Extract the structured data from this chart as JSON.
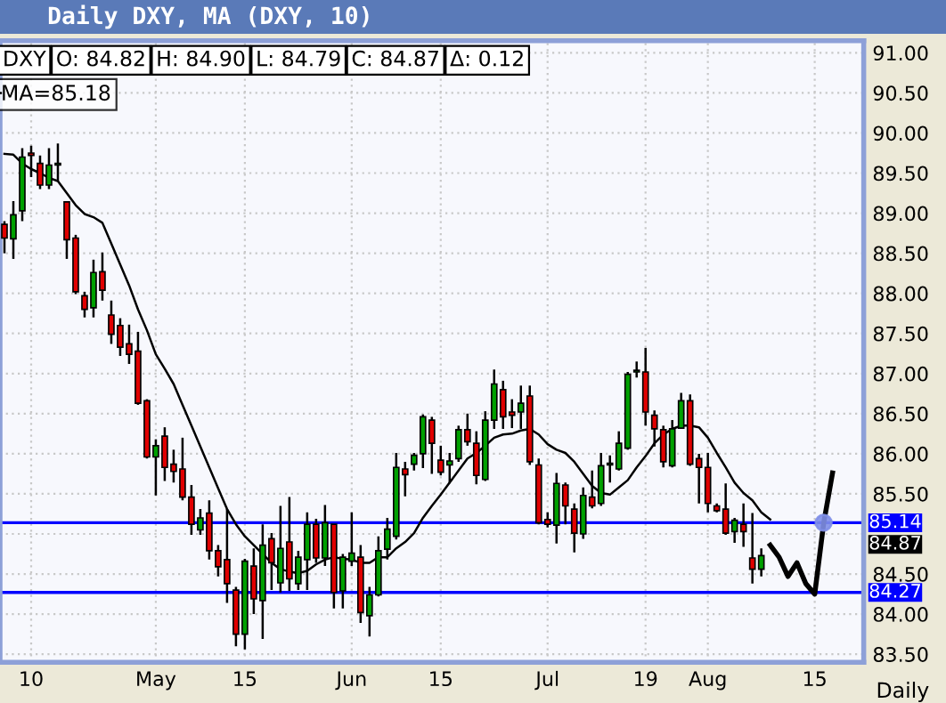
{
  "chart_data": {
    "type": "candlestick",
    "title": "Daily DXY, MA (DXY, 10)",
    "xlabel": "Daily",
    "categories": [
      null,
      null,
      null,
      "10",
      null,
      null,
      null,
      null,
      null,
      null,
      null,
      null,
      null,
      null,
      null,
      null,
      null,
      "May",
      null,
      null,
      null,
      null,
      null,
      null,
      null,
      null,
      null,
      "15",
      null,
      null,
      null,
      null,
      null,
      null,
      null,
      null,
      null,
      null,
      null,
      "Jun",
      null,
      null,
      null,
      null,
      null,
      null,
      null,
      null,
      null,
      "15",
      null,
      null,
      null,
      null,
      null,
      null,
      null,
      null,
      null,
      null,
      null,
      "Jul",
      null,
      null,
      null,
      null,
      null,
      null,
      null,
      null,
      null,
      null,
      "19",
      null,
      null,
      null,
      null,
      null,
      null,
      "Aug",
      null,
      null,
      null,
      null,
      null,
      null,
      null,
      null,
      null,
      null,
      null,
      "15",
      null,
      null,
      null,
      null,
      null
    ],
    "ohlc": [
      [
        88.86,
        88.9,
        88.5,
        88.69
      ],
      [
        88.68,
        89.15,
        88.43,
        88.98
      ],
      [
        89.03,
        89.81,
        88.9,
        89.7
      ],
      [
        89.75,
        89.84,
        89.45,
        89.72
      ],
      [
        89.62,
        89.72,
        89.3,
        89.35
      ],
      [
        89.35,
        89.81,
        89.3,
        89.6
      ],
      [
        89.6,
        89.87,
        89.4,
        89.62
      ],
      [
        89.14,
        89.15,
        88.43,
        88.67
      ],
      [
        88.69,
        88.73,
        87.99,
        88.02
      ],
      [
        87.97,
        88.02,
        87.7,
        87.8
      ],
      [
        87.82,
        88.42,
        87.7,
        88.26
      ],
      [
        88.27,
        88.51,
        87.91,
        88.04
      ],
      [
        87.73,
        87.91,
        87.37,
        87.49
      ],
      [
        87.6,
        87.69,
        87.22,
        87.33
      ],
      [
        87.37,
        87.61,
        87.12,
        87.24
      ],
      [
        87.28,
        87.52,
        86.61,
        86.63
      ],
      [
        86.66,
        86.68,
        85.94,
        85.96
      ],
      [
        85.96,
        86.18,
        85.48,
        86.1
      ],
      [
        86.22,
        86.33,
        85.66,
        85.83
      ],
      [
        85.87,
        86.05,
        85.64,
        85.78
      ],
      [
        85.81,
        86.2,
        85.42,
        85.46
      ],
      [
        85.46,
        85.61,
        84.99,
        85.12
      ],
      [
        85.05,
        85.31,
        84.99,
        85.2
      ],
      [
        85.26,
        85.42,
        84.68,
        84.79
      ],
      [
        84.79,
        84.86,
        84.47,
        84.59
      ],
      [
        84.68,
        85.31,
        84.14,
        84.38
      ],
      [
        84.3,
        84.34,
        83.6,
        83.75
      ],
      [
        83.75,
        84.69,
        83.56,
        84.66
      ],
      [
        84.6,
        84.82,
        84.0,
        84.19
      ],
      [
        84.17,
        85.12,
        83.69,
        84.86
      ],
      [
        84.94,
        85.01,
        84.3,
        84.64
      ],
      [
        84.39,
        85.35,
        84.27,
        84.82
      ],
      [
        84.9,
        85.46,
        84.29,
        84.44
      ],
      [
        84.38,
        84.79,
        84.3,
        84.71
      ],
      [
        84.68,
        85.27,
        84.3,
        85.12
      ],
      [
        85.12,
        85.19,
        84.64,
        84.7
      ],
      [
        84.7,
        85.36,
        84.6,
        85.14
      ],
      [
        85.12,
        85.12,
        84.07,
        84.27
      ],
      [
        84.29,
        84.75,
        84.07,
        84.71
      ],
      [
        84.66,
        85.27,
        84.6,
        84.76
      ],
      [
        84.71,
        84.86,
        83.89,
        84.02
      ],
      [
        83.98,
        84.34,
        83.72,
        84.24
      ],
      [
        84.24,
        84.97,
        84.22,
        84.79
      ],
      [
        84.81,
        85.2,
        84.68,
        85.06
      ],
      [
        84.97,
        86.01,
        84.93,
        85.83
      ],
      [
        85.81,
        85.9,
        85.47,
        85.74
      ],
      [
        85.87,
        86.01,
        85.79,
        85.98
      ],
      [
        86.0,
        86.49,
        85.82,
        86.46
      ],
      [
        86.42,
        86.46,
        85.75,
        86.13
      ],
      [
        85.92,
        86.1,
        85.73,
        85.77
      ],
      [
        85.86,
        86.01,
        85.63,
        85.91
      ],
      [
        85.94,
        86.35,
        85.9,
        86.3
      ],
      [
        86.3,
        86.5,
        86.1,
        86.15
      ],
      [
        86.13,
        86.28,
        85.62,
        85.73
      ],
      [
        85.68,
        86.53,
        85.66,
        86.42
      ],
      [
        86.42,
        87.05,
        86.31,
        86.87
      ],
      [
        86.8,
        86.91,
        86.31,
        86.46
      ],
      [
        86.52,
        86.68,
        86.32,
        86.48
      ],
      [
        86.52,
        86.85,
        86.31,
        86.63
      ],
      [
        86.72,
        86.85,
        85.86,
        85.9
      ],
      [
        85.86,
        85.94,
        85.12,
        85.14
      ],
      [
        85.18,
        85.27,
        85.08,
        85.12
      ],
      [
        85.11,
        85.76,
        84.88,
        85.63
      ],
      [
        85.61,
        85.64,
        85.12,
        85.35
      ],
      [
        85.31,
        85.38,
        84.77,
        85.01
      ],
      [
        85.0,
        85.58,
        84.94,
        85.48
      ],
      [
        85.46,
        85.79,
        85.32,
        85.35
      ],
      [
        85.38,
        86.01,
        85.35,
        85.85
      ],
      [
        85.86,
        85.98,
        85.64,
        85.88
      ],
      [
        85.81,
        86.28,
        85.79,
        86.13
      ],
      [
        86.07,
        87.02,
        86.05,
        86.99
      ],
      [
        87.02,
        87.15,
        86.95,
        87.04
      ],
      [
        87.02,
        87.32,
        86.35,
        86.52
      ],
      [
        86.48,
        86.54,
        86.09,
        86.31
      ],
      [
        86.3,
        86.35,
        85.83,
        85.9
      ],
      [
        85.85,
        86.42,
        85.83,
        86.31
      ],
      [
        86.32,
        86.76,
        86.31,
        86.66
      ],
      [
        86.66,
        86.74,
        85.85,
        85.87
      ],
      [
        85.94,
        86.0,
        85.38,
        85.83
      ],
      [
        85.83,
        86.01,
        85.27,
        85.38
      ],
      [
        85.35,
        85.38,
        85.27,
        85.29
      ],
      [
        85.31,
        85.63,
        84.99,
        85.01
      ],
      [
        85.03,
        85.2,
        84.89,
        85.17
      ],
      [
        85.12,
        85.38,
        84.84,
        85.03
      ],
      [
        84.7,
        85.26,
        84.38,
        84.56
      ],
      [
        84.56,
        84.82,
        84.47,
        84.73
      ],
      null,
      null,
      null,
      null,
      null,
      null,
      null,
      null,
      null,
      null,
      null
    ],
    "colors": [
      "#e00000",
      "#00a000",
      "#00a000",
      "#e00000",
      "#e00000",
      "#00a000",
      "#00a000",
      "#e00000",
      "#e00000",
      "#e00000",
      "#00a000",
      "#e00000",
      "#e00000",
      "#e00000",
      "#e00000",
      "#e00000",
      "#e00000",
      "#00a000",
      "#e00000",
      "#e00000",
      "#e00000",
      "#e00000",
      "#00a000",
      "#e00000",
      "#e00000",
      "#e00000",
      "#e00000",
      "#00a000",
      "#e00000",
      "#00a000",
      "#e00000",
      "#00a000",
      "#e00000",
      "#00a000",
      "#00a000",
      "#e00000",
      "#00a000",
      "#e00000",
      "#00a000",
      "#00a000",
      "#e00000",
      "#00a000",
      "#00a000",
      "#00a000",
      "#00a000",
      "#e00000",
      "#00a000",
      "#00a000",
      "#e00000",
      "#e00000",
      "#00a000",
      "#00a000",
      "#e00000",
      "#e00000",
      "#00a000",
      "#00a000",
      "#e00000",
      "#e00000",
      "#00a000",
      "#e00000",
      "#e00000",
      "#e00000",
      "#00a000",
      "#e00000",
      "#e00000",
      "#00a000",
      "#e00000",
      "#00a000",
      "#00a000",
      "#00a000",
      "#00a000",
      "#00a000",
      "#e00000",
      "#e00000",
      "#e00000",
      "#00a000",
      "#00a000",
      "#e00000",
      "#e00000",
      "#e00000",
      "#e00000",
      "#e00000",
      "#00a000",
      "#e00000",
      "#e00000",
      "#00a000",
      null,
      null,
      null,
      null,
      null,
      null,
      null,
      null,
      null,
      null,
      null
    ],
    "series": [
      {
        "type": "line",
        "name": "MA=85.18",
        "color": "#000000",
        "values": [
          89.74,
          89.73,
          89.62,
          89.55,
          89.5,
          89.44,
          89.4,
          89.25,
          89.1,
          88.99,
          88.95,
          88.88,
          88.62,
          88.36,
          88.1,
          87.8,
          87.54,
          87.24,
          87.06,
          86.87,
          86.61,
          86.35,
          86.09,
          85.83,
          85.57,
          85.31,
          85.12,
          84.97,
          84.86,
          84.75,
          84.64,
          84.56,
          84.53,
          84.51,
          84.54,
          84.62,
          84.68,
          84.71,
          84.69,
          84.68,
          84.64,
          84.64,
          84.71,
          84.71,
          84.82,
          84.9,
          85.01,
          85.2,
          85.35,
          85.49,
          85.64,
          85.79,
          85.94,
          86.01,
          86.1,
          86.2,
          86.24,
          86.25,
          86.29,
          86.31,
          86.24,
          86.12,
          86.05,
          86.01,
          85.9,
          85.75,
          85.6,
          85.51,
          85.49,
          85.58,
          85.67,
          85.83,
          85.97,
          86.13,
          86.24,
          86.31,
          86.35,
          86.35,
          86.33,
          86.2,
          86.01,
          85.83,
          85.64,
          85.51,
          85.42,
          85.27,
          85.18,
          null,
          null,
          null,
          null,
          null,
          null,
          null,
          null,
          null,
          null
        ]
      },
      {
        "type": "line",
        "color": "#000000",
        "values": [
          null,
          null,
          null,
          null,
          null,
          null,
          null,
          null,
          null,
          null,
          null,
          null,
          null,
          null,
          null,
          null,
          null,
          null,
          null,
          null,
          null,
          null,
          null,
          null,
          null,
          null,
          null,
          null,
          null,
          null,
          null,
          null,
          null,
          null,
          null,
          null,
          null,
          null,
          null,
          null,
          null,
          null,
          null,
          null,
          null,
          null,
          null,
          null,
          null,
          null,
          null,
          null,
          null,
          null,
          null,
          null,
          null,
          null,
          null,
          null,
          null,
          null,
          null,
          null,
          null,
          null,
          null,
          null,
          null,
          null,
          null,
          null,
          null,
          null,
          null,
          null,
          null,
          null,
          null,
          null,
          null,
          null,
          null,
          null,
          null,
          null,
          84.86,
          84.71,
          84.47,
          84.64,
          84.38,
          84.25,
          85.13,
          85.76,
          null,
          null,
          null
        ]
      },
      {
        "type": "scatter",
        "color": "#7f8fe8",
        "marker": "circle",
        "values": [
          null,
          null,
          null,
          null,
          null,
          null,
          null,
          null,
          null,
          null,
          null,
          null,
          null,
          null,
          null,
          null,
          null,
          null,
          null,
          null,
          null,
          null,
          null,
          null,
          null,
          null,
          null,
          null,
          null,
          null,
          null,
          null,
          null,
          null,
          null,
          null,
          null,
          null,
          null,
          null,
          null,
          null,
          null,
          null,
          null,
          null,
          null,
          null,
          null,
          null,
          null,
          null,
          null,
          null,
          null,
          null,
          null,
          null,
          null,
          null,
          null,
          null,
          null,
          null,
          null,
          null,
          null,
          null,
          null,
          null,
          null,
          null,
          null,
          null,
          null,
          null,
          null,
          null,
          null,
          null,
          null,
          null,
          null,
          null,
          null,
          null,
          null,
          null,
          null,
          null,
          null,
          null,
          85.14,
          null,
          null,
          null,
          null
        ]
      }
    ],
    "ylim": [
      83.4,
      91.15
    ],
    "yticks": [
      {
        "value": 83.5,
        "label": "83.50"
      },
      {
        "value": 84,
        "label": "84.00"
      },
      {
        "value": 84.5,
        "label": "84.50"
      },
      {
        "value": 85,
        "label": null
      },
      {
        "value": 85.5,
        "label": "85.50"
      },
      {
        "value": 86,
        "label": "86.00"
      },
      {
        "value": 86.5,
        "label": "86.50"
      },
      {
        "value": 87,
        "label": "87.00"
      },
      {
        "value": 87.5,
        "label": "87.50"
      },
      {
        "value": 88,
        "label": "88.00"
      },
      {
        "value": 88.5,
        "label": "88.50"
      },
      {
        "value": 89,
        "label": "89.00"
      },
      {
        "value": 89.5,
        "label": "89.50"
      },
      {
        "value": 90,
        "label": "90.00"
      },
      {
        "value": 90.5,
        "label": "90.50"
      },
      {
        "value": 91,
        "label": "91.00"
      }
    ],
    "ref_lines": [
      {
        "axis": "y",
        "value": 85.14,
        "label": "85.14",
        "color": "#0000ff"
      },
      {
        "axis": "y",
        "value": 84.27,
        "label": "84.27",
        "color": "#0000ff"
      }
    ],
    "annotations": [
      "DXY",
      "O: 84.82",
      "H: 84.90",
      "L: 84.79",
      "C: 84.87",
      "Δ: 0.12",
      {
        "text": "84.87",
        "y": 84.87
      }
    ],
    "grid": true,
    "legend": "top left",
    "line_style": "solid"
  }
}
